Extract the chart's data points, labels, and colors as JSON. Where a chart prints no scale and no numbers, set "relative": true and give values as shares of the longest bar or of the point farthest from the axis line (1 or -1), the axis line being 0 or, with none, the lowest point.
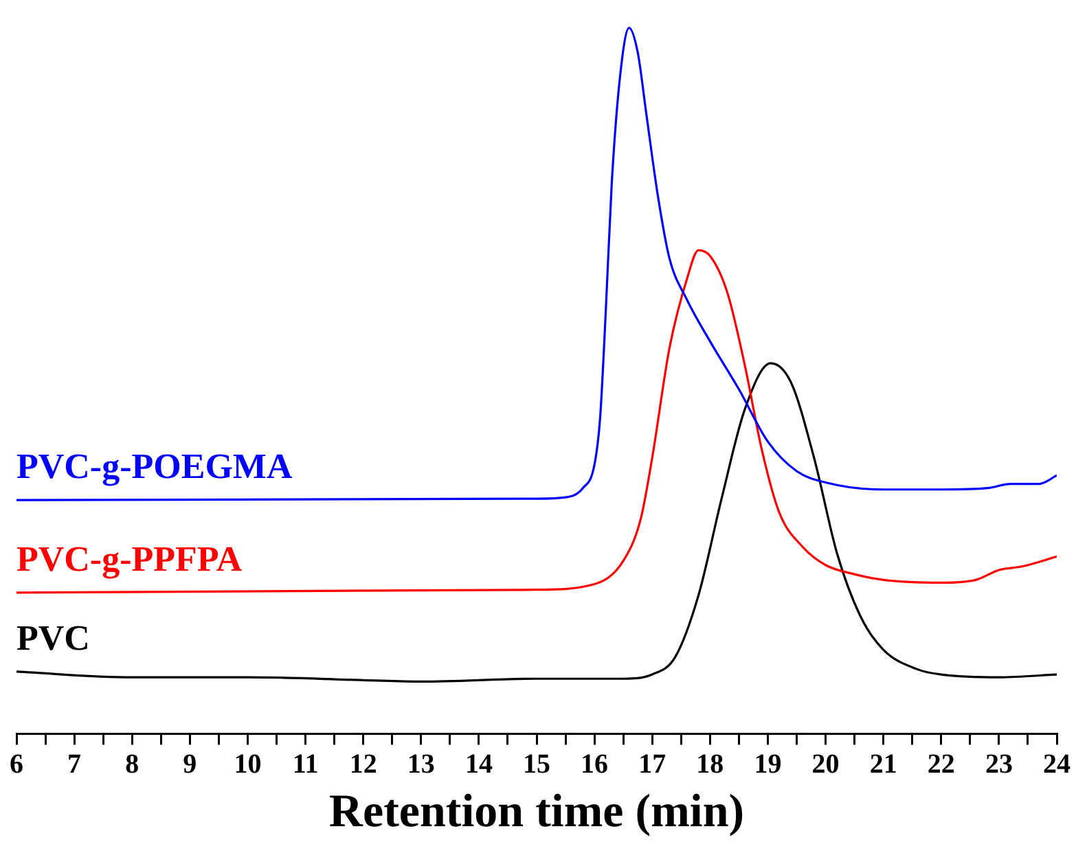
{
  "chart_data": {
    "type": "line",
    "xlabel": "Retention time (min)",
    "relative": true,
    "legend": false,
    "grid": false,
    "marker": "none",
    "line_style": "solid",
    "xlim": [
      6,
      24
    ],
    "xticks": [
      6,
      {
        "value": 6.5,
        "label": null
      },
      7,
      {
        "value": 7.5,
        "label": null
      },
      8,
      {
        "value": 8.5,
        "label": null
      },
      9,
      {
        "value": 9.5,
        "label": null
      },
      10,
      {
        "value": 10.5,
        "label": null
      },
      11,
      {
        "value": 11.5,
        "label": null
      },
      12,
      {
        "value": 12.5,
        "label": null
      },
      13,
      {
        "value": 13.5,
        "label": null
      },
      14,
      {
        "value": 14.5,
        "label": null
      },
      15,
      {
        "value": 15.5,
        "label": null
      },
      16,
      {
        "value": 16.5,
        "label": null
      },
      17,
      {
        "value": 17.5,
        "label": null
      },
      18,
      {
        "value": 18.5,
        "label": null
      },
      19,
      {
        "value": 19.5,
        "label": null
      },
      20,
      {
        "value": 20.5,
        "label": null
      },
      21,
      {
        "value": 21.5,
        "label": null
      },
      22,
      {
        "value": 22.5,
        "label": null
      },
      23,
      {
        "value": 23.5,
        "label": null
      },
      24
    ],
    "series": [
      {
        "name": "PVC-g-POEGMA",
        "color": "#0000ff",
        "x": [
          6,
          15,
          15.5,
          15.8,
          16,
          16.1,
          16.2,
          16.3,
          16.45,
          16.6,
          16.75,
          16.9,
          17.1,
          17.3,
          17.6,
          18,
          18.5,
          19,
          19.5,
          20,
          21,
          22,
          22.8,
          23.2,
          23.7,
          24
        ],
        "values": [
          0.331,
          0.333,
          0.335,
          0.348,
          0.381,
          0.449,
          0.605,
          0.78,
          0.936,
          1,
          0.965,
          0.877,
          0.761,
          0.673,
          0.615,
          0.556,
          0.488,
          0.414,
          0.372,
          0.356,
          0.346,
          0.346,
          0.348,
          0.354,
          0.354,
          0.366
        ]
      },
      {
        "name": "PVC-g-PPFPA",
        "color": "#ff0000",
        "x": [
          6,
          15,
          16,
          16.5,
          16.8,
          17,
          17.3,
          17.6,
          17.8,
          18,
          18.3,
          18.6,
          18.9,
          19.2,
          19.6,
          20,
          20.5,
          21,
          22,
          22.6,
          23,
          23.4,
          24
        ],
        "values": [
          0.2,
          0.204,
          0.212,
          0.245,
          0.304,
          0.391,
          0.547,
          0.644,
          0.685,
          0.677,
          0.625,
          0.523,
          0.401,
          0.313,
          0.265,
          0.239,
          0.226,
          0.218,
          0.214,
          0.218,
          0.232,
          0.237,
          0.251
        ]
      },
      {
        "name": "PVC",
        "color": "#000000",
        "x": [
          6,
          8,
          10,
          12,
          13,
          15,
          16.5,
          17,
          17.4,
          17.8,
          18.2,
          18.6,
          19.05,
          19.4,
          19.8,
          20.2,
          20.6,
          21,
          21.6,
          22,
          23,
          24
        ],
        "values": [
          0.088,
          0.08,
          0.08,
          0.076,
          0.074,
          0.078,
          0.078,
          0.084,
          0.109,
          0.196,
          0.333,
          0.459,
          0.525,
          0.498,
          0.391,
          0.255,
          0.167,
          0.119,
          0.091,
          0.084,
          0.08,
          0.084
        ]
      }
    ]
  }
}
